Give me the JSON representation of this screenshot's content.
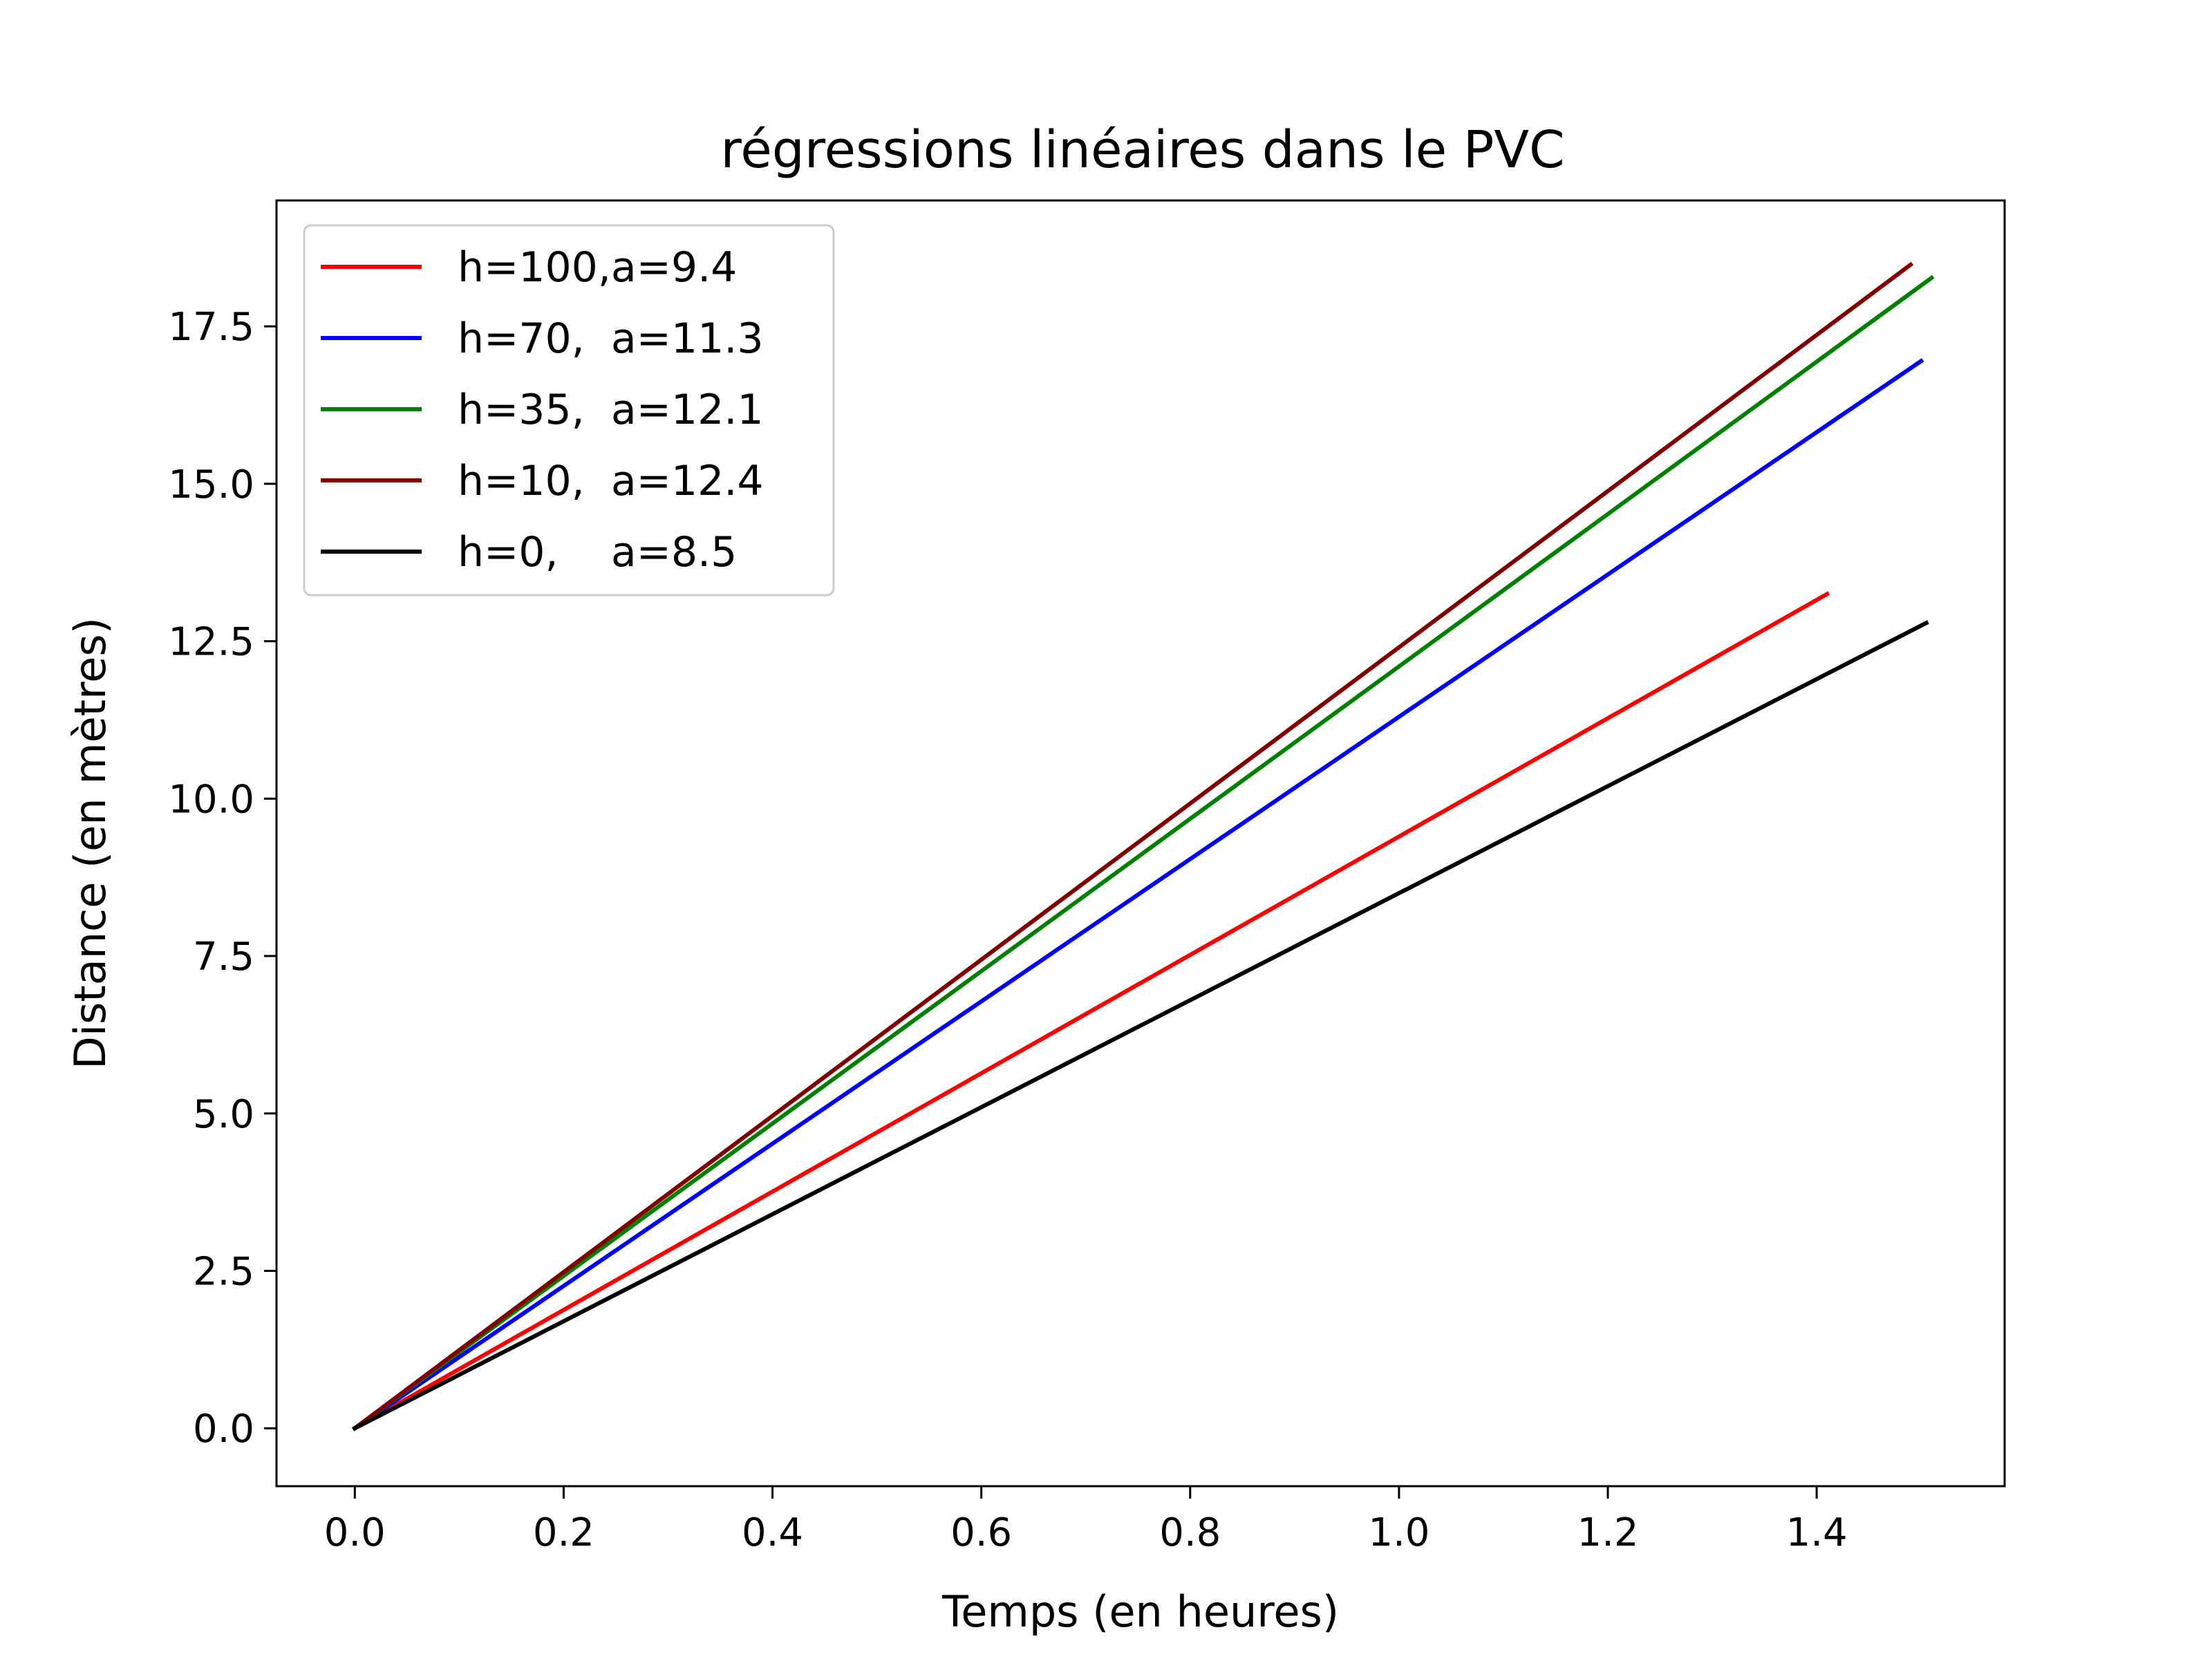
{
  "chart_data": {
    "type": "line",
    "title": "régressions linéaires dans le PVC",
    "xlabel": "Temps (en heures)",
    "ylabel": "Distance (en mètres)",
    "xlim": [
      -0.075,
      1.58
    ],
    "ylim": [
      -0.92,
      19.5
    ],
    "xticks": [
      0.0,
      0.2,
      0.4,
      0.6,
      0.8,
      1.0,
      1.2,
      1.4
    ],
    "xtick_labels": [
      "0.0",
      "0.2",
      "0.4",
      "0.6",
      "0.8",
      "1.0",
      "1.2",
      "1.4"
    ],
    "yticks": [
      0.0,
      2.5,
      5.0,
      7.5,
      10.0,
      12.5,
      15.0,
      17.5
    ],
    "ytick_labels": [
      "0.0",
      "2.5",
      "5.0",
      "7.5",
      "10.0",
      "12.5",
      "15.0",
      "17.5"
    ],
    "grid": false,
    "legend_position": "top-left",
    "series": [
      {
        "name": "h=100,a=9.4",
        "color": "#ff0000",
        "x": [
          0.0,
          1.41
        ],
        "y": [
          0.0,
          13.25
        ]
      },
      {
        "name": "h=70,  a=11.3",
        "color": "#0000ff",
        "x": [
          0.0,
          1.5
        ],
        "y": [
          0.0,
          16.95
        ]
      },
      {
        "name": "h=35,  a=12.1",
        "color": "#008000",
        "x": [
          0.0,
          1.51
        ],
        "y": [
          0.0,
          18.27
        ]
      },
      {
        "name": "h=10,  a=12.4",
        "color": "#800000",
        "x": [
          0.0,
          1.49
        ],
        "y": [
          0.0,
          18.48
        ]
      },
      {
        "name": "h=0,    a=8.5",
        "color": "#000000",
        "x": [
          0.0,
          1.505
        ],
        "y": [
          0.0,
          12.79
        ]
      }
    ]
  }
}
